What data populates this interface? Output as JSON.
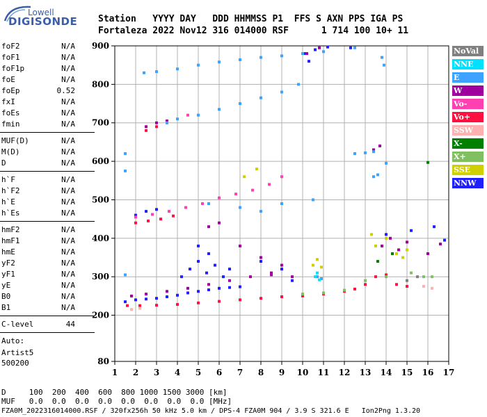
{
  "logo": {
    "line1": "Lowell",
    "line2": "DIGISONDE"
  },
  "header": {
    "row1": "Station   YYYY DAY   DDD HHMMSS P1  FFS S AXN PPS IGA PS",
    "row2": "Fortaleza 2022 Nov12 316 014000 RSF      1 714 100 10+ 11"
  },
  "params": [
    {
      "name": "foF2",
      "value": "N/A"
    },
    {
      "name": "foF1",
      "value": "N/A"
    },
    {
      "name": "foF1p",
      "value": "N/A"
    },
    {
      "name": "foE",
      "value": "N/A"
    },
    {
      "name": "foEp",
      "value": "0.52"
    },
    {
      "name": "fxI",
      "value": "N/A"
    },
    {
      "name": "foEs",
      "value": "N/A"
    },
    {
      "name": "fmin",
      "value": "N/A"
    },
    {
      "name": "MUF(D)",
      "value": "N/A"
    },
    {
      "name": "M(D)",
      "value": "N/A"
    },
    {
      "name": "D",
      "value": "N/A"
    },
    {
      "name": "h`F",
      "value": "N/A"
    },
    {
      "name": "h`F2",
      "value": "N/A"
    },
    {
      "name": "h`E",
      "value": "N/A"
    },
    {
      "name": "h`Es",
      "value": "N/A"
    },
    {
      "name": "hmF2",
      "value": "N/A"
    },
    {
      "name": "hmF1",
      "value": "N/A"
    },
    {
      "name": "hmE",
      "value": "N/A"
    },
    {
      "name": "yF2",
      "value": "N/A"
    },
    {
      "name": "yF1",
      "value": "N/A"
    },
    {
      "name": "yE",
      "value": "N/A"
    },
    {
      "name": "B0",
      "value": "N/A"
    },
    {
      "name": "B1",
      "value": "N/A"
    },
    {
      "name": "C-level",
      "value": "44"
    }
  ],
  "auto": {
    "label": "Auto:",
    "software": "Artist5",
    "version": "500200"
  },
  "legend": [
    {
      "label": "NoVal",
      "color": "#808080"
    },
    {
      "label": "NNE",
      "color": "#00e0ff"
    },
    {
      "label": "E",
      "color": "#3ea2ff"
    },
    {
      "label": "W",
      "color": "#a000a0"
    },
    {
      "label": "Vo-",
      "color": "#ff40b0"
    },
    {
      "label": "Vo+",
      "color": "#ff1040"
    },
    {
      "label": "SSW",
      "color": "#ffb0b0"
    },
    {
      "label": "X-",
      "color": "#008000"
    },
    {
      "label": "X+",
      "color": "#80c060"
    },
    {
      "label": "SSE",
      "color": "#d0d000"
    },
    {
      "label": "NNW",
      "color": "#2020ff"
    }
  ],
  "footer": {
    "d_row": "D     100  200  400  600  800 1000 1500 3000 [km]",
    "muf_row": "MUF   0.0  0.0  0.0  0.0  0.0  0.0  0.0  0.0 [MHz]",
    "file_line": "FZA0M_2022316014000.RSF / 320fx256h 50 kHz 5.0 km / DPS-4 FZA0M 904 / 3.9 S 321.6 E   Ion2Png 1.3.20"
  },
  "chart_data": {
    "type": "scatter",
    "xlabel": "",
    "ylabel": "",
    "xlim": [
      1,
      17
    ],
    "ylim": [
      80,
      900
    ],
    "x_ticks": [
      1,
      2,
      3,
      4,
      5,
      6,
      7,
      8,
      9,
      10,
      11,
      12,
      13,
      14,
      15,
      16,
      17
    ],
    "y_ticks": [
      80,
      200,
      300,
      400,
      500,
      600,
      700,
      800,
      900
    ],
    "grid": true,
    "legend_position": "right",
    "series": [
      {
        "name": "NNW",
        "color": "#2020ff",
        "points": [
          [
            1.5,
            235
          ],
          [
            2.0,
            240
          ],
          [
            2.5,
            242
          ],
          [
            3.0,
            244
          ],
          [
            3.5,
            248
          ],
          [
            4.0,
            252
          ],
          [
            4.5,
            258
          ],
          [
            5.0,
            262
          ],
          [
            5.5,
            266
          ],
          [
            6.0,
            270
          ],
          [
            6.5,
            272
          ],
          [
            7.0,
            274
          ],
          [
            4.2,
            300
          ],
          [
            4.6,
            320
          ],
          [
            5.0,
            340
          ],
          [
            5.4,
            310
          ],
          [
            5.8,
            330
          ],
          [
            6.2,
            300
          ],
          [
            5.0,
            380
          ],
          [
            5.5,
            360
          ],
          [
            6.5,
            320
          ],
          [
            8.0,
            340
          ],
          [
            9.0,
            320
          ],
          [
            9.5,
            290
          ],
          [
            10.1,
            880
          ],
          [
            10.3,
            860
          ],
          [
            10.6,
            890
          ],
          [
            11.2,
            897
          ],
          [
            12.3,
            895
          ],
          [
            2.0,
            460
          ],
          [
            2.5,
            470
          ],
          [
            3.0,
            475
          ],
          [
            14.0,
            410
          ],
          [
            15.2,
            420
          ],
          [
            16.3,
            430
          ],
          [
            16.8,
            395
          ]
        ]
      },
      {
        "name": "W",
        "color": "#a000a0",
        "points": [
          [
            1.8,
            250
          ],
          [
            2.5,
            255
          ],
          [
            3.5,
            262
          ],
          [
            4.5,
            270
          ],
          [
            5.5,
            280
          ],
          [
            6.5,
            290
          ],
          [
            7.5,
            300
          ],
          [
            8.5,
            305
          ],
          [
            9.5,
            300
          ],
          [
            5.5,
            430
          ],
          [
            6.0,
            440
          ],
          [
            7.0,
            380
          ],
          [
            8.0,
            350
          ],
          [
            8.5,
            310
          ],
          [
            9.0,
            330
          ],
          [
            13.8,
            380
          ],
          [
            14.2,
            400
          ],
          [
            14.6,
            370
          ],
          [
            15.0,
            390
          ],
          [
            16.0,
            360
          ],
          [
            16.6,
            385
          ],
          [
            2.5,
            690
          ],
          [
            3.0,
            700
          ],
          [
            3.5,
            705
          ],
          [
            13.4,
            630
          ],
          [
            13.7,
            640
          ],
          [
            10.2,
            880
          ],
          [
            10.8,
            895
          ]
        ]
      },
      {
        "name": "Vo+",
        "color": "#ff1040",
        "points": [
          [
            1.6,
            225
          ],
          [
            2.2,
            225
          ],
          [
            3.0,
            226
          ],
          [
            4.0,
            228
          ],
          [
            5.0,
            232
          ],
          [
            6.0,
            236
          ],
          [
            7.0,
            240
          ],
          [
            8.0,
            244
          ],
          [
            9.0,
            248
          ],
          [
            10.0,
            250
          ],
          [
            11.0,
            255
          ],
          [
            12.0,
            262
          ],
          [
            12.5,
            268
          ],
          [
            13.0,
            280
          ],
          [
            13.5,
            300
          ],
          [
            14.0,
            305
          ],
          [
            14.5,
            280
          ],
          [
            15.0,
            275
          ],
          [
            2.0,
            440
          ],
          [
            2.6,
            445
          ],
          [
            3.2,
            450
          ],
          [
            3.8,
            458
          ],
          [
            2.5,
            680
          ],
          [
            3.0,
            690
          ]
        ]
      },
      {
        "name": "Vo-",
        "color": "#ff40b0",
        "points": [
          [
            2.0,
            455
          ],
          [
            2.8,
            462
          ],
          [
            3.6,
            470
          ],
          [
            4.4,
            480
          ],
          [
            5.2,
            490
          ],
          [
            6.0,
            505
          ],
          [
            6.8,
            515
          ],
          [
            7.6,
            525
          ],
          [
            8.4,
            540
          ],
          [
            9.0,
            560
          ],
          [
            3.5,
            700
          ],
          [
            4.5,
            720
          ]
        ]
      },
      {
        "name": "E",
        "color": "#3ea2ff",
        "points": [
          [
            2.4,
            830
          ],
          [
            3.0,
            833
          ],
          [
            4.0,
            840
          ],
          [
            5.0,
            850
          ],
          [
            6.0,
            858
          ],
          [
            7.0,
            864
          ],
          [
            8.0,
            870
          ],
          [
            9.0,
            874
          ],
          [
            10.0,
            880
          ],
          [
            11.0,
            885
          ],
          [
            12.5,
            895
          ],
          [
            3.5,
            700
          ],
          [
            4.0,
            710
          ],
          [
            5.0,
            720
          ],
          [
            6.0,
            735
          ],
          [
            7.0,
            750
          ],
          [
            8.0,
            765
          ],
          [
            9.0,
            780
          ],
          [
            9.8,
            800
          ],
          [
            5.5,
            490
          ],
          [
            7.0,
            480
          ],
          [
            8.0,
            470
          ],
          [
            9.0,
            490
          ],
          [
            10.5,
            500
          ],
          [
            10.7,
            300
          ],
          [
            10.9,
            295
          ],
          [
            12.5,
            620
          ],
          [
            13.0,
            622
          ],
          [
            13.4,
            625
          ],
          [
            13.4,
            560
          ],
          [
            13.6,
            565
          ],
          [
            14.0,
            595
          ],
          [
            13.8,
            870
          ],
          [
            13.9,
            850
          ],
          [
            1.5,
            620
          ],
          [
            1.5,
            575
          ],
          [
            1.5,
            305
          ]
        ]
      },
      {
        "name": "NNE",
        "color": "#00e0ff",
        "points": [
          [
            10.6,
            300
          ],
          [
            10.8,
            292
          ],
          [
            10.7,
            310
          ]
        ]
      },
      {
        "name": "SSE",
        "color": "#d0d000",
        "points": [
          [
            10.5,
            330
          ],
          [
            10.7,
            345
          ],
          [
            10.9,
            325
          ],
          [
            13.5,
            380
          ],
          [
            14.0,
            400
          ],
          [
            14.5,
            360
          ],
          [
            15.0,
            370
          ],
          [
            13.3,
            410
          ],
          [
            14.8,
            350
          ],
          [
            7.2,
            560
          ],
          [
            7.8,
            580
          ]
        ]
      },
      {
        "name": "X+",
        "color": "#80c060",
        "points": [
          [
            10.0,
            255
          ],
          [
            11.0,
            258
          ],
          [
            12.0,
            265
          ],
          [
            13.0,
            290
          ],
          [
            14.0,
            300
          ],
          [
            15.2,
            310
          ],
          [
            15.8,
            300
          ],
          [
            16.2,
            300
          ]
        ]
      },
      {
        "name": "X-",
        "color": "#008000",
        "points": [
          [
            16.0,
            597
          ],
          [
            13.6,
            340
          ],
          [
            14.3,
            360
          ]
        ]
      },
      {
        "name": "SSW",
        "color": "#ffb0b0",
        "points": [
          [
            1.8,
            215
          ],
          [
            2.2,
            218
          ],
          [
            15.8,
            275
          ],
          [
            16.2,
            270
          ]
        ]
      },
      {
        "name": "NoVal",
        "color": "#808080",
        "points": [
          [
            15.0,
            290
          ],
          [
            15.5,
            300
          ]
        ]
      }
    ]
  }
}
